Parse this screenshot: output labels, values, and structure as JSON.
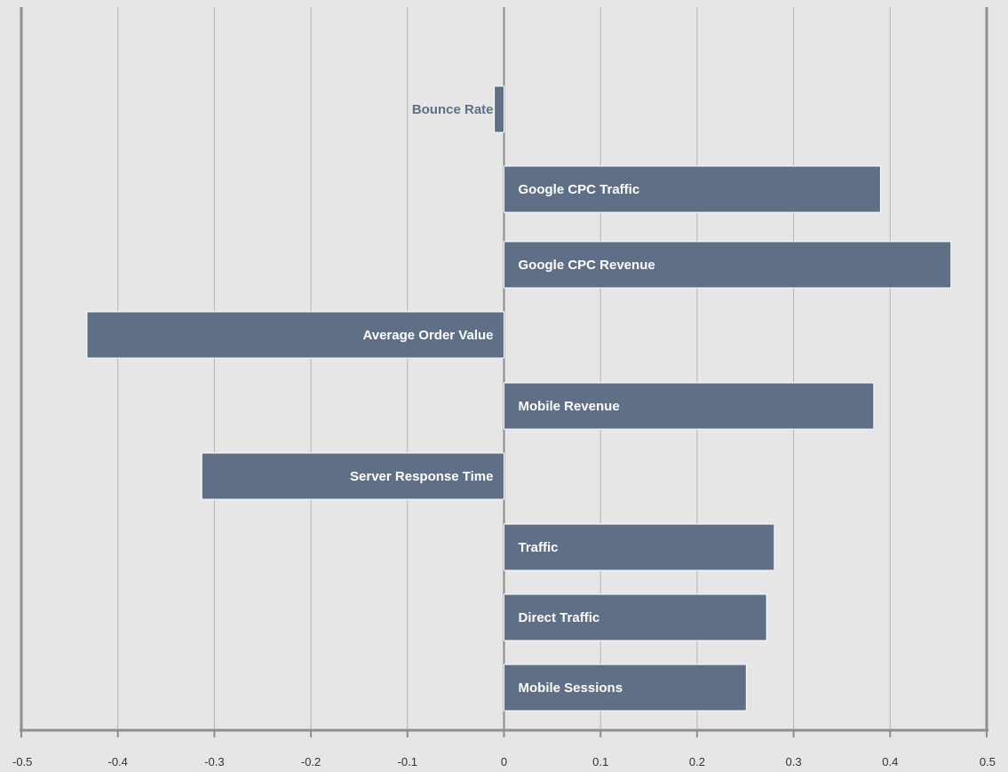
{
  "colors": {
    "background": "#e6e6e6",
    "bar": "#5e6f86",
    "bar_border": "#ffffff",
    "label_inside": "#ffffff",
    "label_outside": "#5e6f86"
  },
  "chart_data": {
    "type": "bar",
    "orientation": "horizontal",
    "title": "",
    "xlabel": "",
    "ylabel": "",
    "xlim": [
      -0.5,
      0.5
    ],
    "xticks": [
      -0.5,
      -0.4,
      -0.3,
      -0.2,
      -0.1,
      0,
      0.1,
      0.2,
      0.3,
      0.4,
      0.5
    ],
    "tick_labels": [
      "-0.5",
      "-0.4",
      "-0.3",
      "-0.2",
      "-0.1",
      "0",
      "0.1",
      "0.2",
      "0.3",
      "0.4",
      "0.5"
    ],
    "grid": "vertical",
    "legend": "none",
    "categories": [
      "Bounce Rate",
      "Google CPC Traffic",
      "Google CPC Revenue",
      "Average Order Value",
      "Mobile Revenue",
      "Server Response Time",
      "Traffic",
      "Direct Traffic",
      "Mobile Sessions"
    ],
    "values": [
      -0.01,
      0.39,
      0.463,
      -0.432,
      0.383,
      -0.313,
      0.28,
      0.272,
      0.251
    ]
  }
}
